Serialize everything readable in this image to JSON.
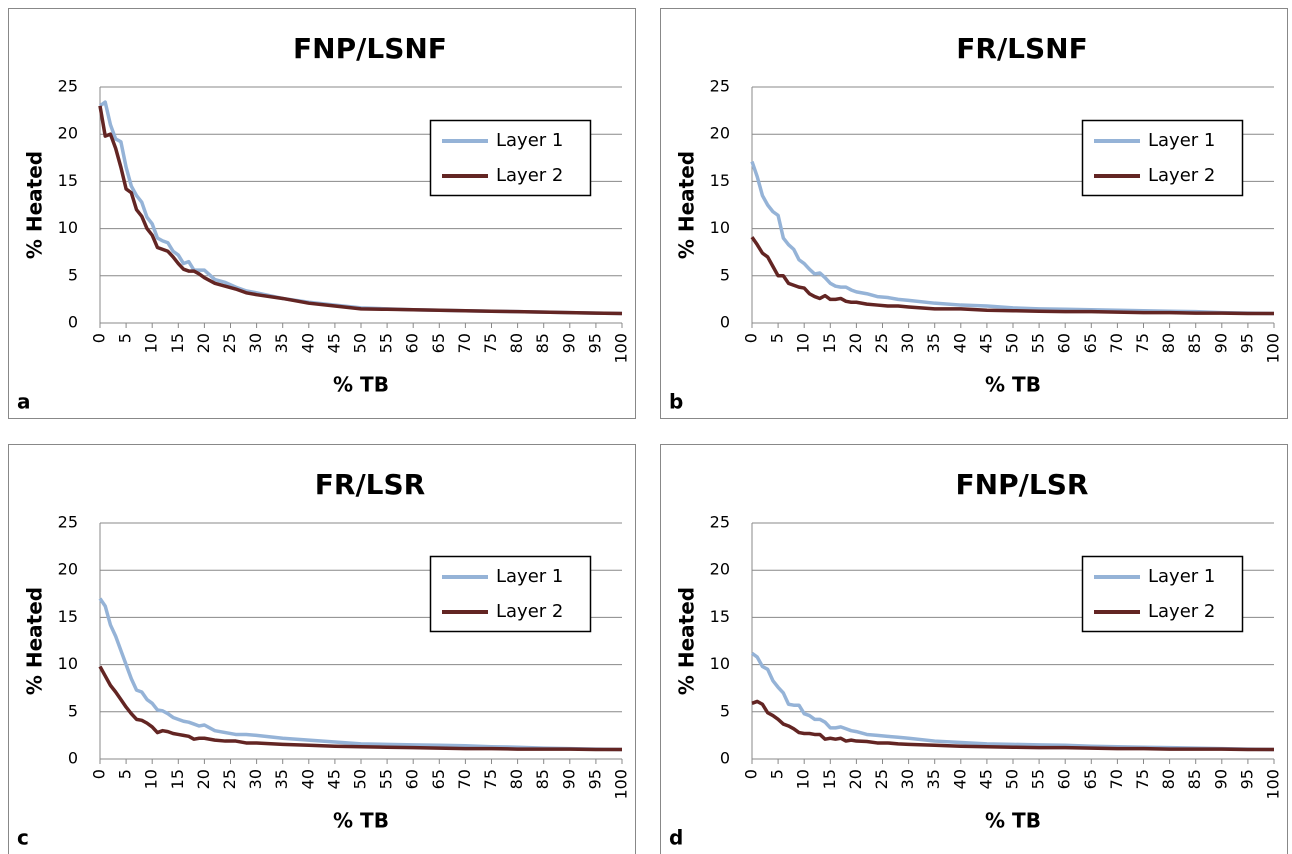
{
  "chart_data": [
    {
      "type": "line",
      "title": "FNP/LSNF",
      "panel_label": "a",
      "xlabel": "% TB",
      "ylabel": "% Heated",
      "x": [
        0,
        1,
        2,
        3,
        4,
        5,
        6,
        7,
        8,
        9,
        10,
        11,
        12,
        13,
        14,
        15,
        16,
        17,
        18,
        19,
        20,
        22,
        24,
        26,
        28,
        30,
        35,
        40,
        45,
        50,
        55,
        60,
        65,
        70,
        75,
        80,
        85,
        90,
        95,
        100
      ],
      "series": [
        {
          "name": "Layer 1",
          "color": "#95b3d7",
          "values": [
            23,
            23.4,
            21,
            19.5,
            19.2,
            16.5,
            14.5,
            13.5,
            12.8,
            11.2,
            10.5,
            9,
            8.7,
            8.5,
            7.6,
            7.2,
            6.3,
            6.5,
            5.6,
            5.6,
            5.6,
            4.6,
            4.3,
            3.8,
            3.4,
            3.2,
            2.6,
            2.2,
            1.9,
            1.6,
            1.5,
            1.4,
            1.35,
            1.3,
            1.25,
            1.2,
            1.15,
            1.1,
            1.05,
            1
          ]
        },
        {
          "name": "Layer 2",
          "color": "#632523",
          "values": [
            23,
            19.8,
            20,
            18.5,
            16.5,
            14.2,
            13.8,
            12,
            11.3,
            10,
            9.3,
            8,
            7.8,
            7.6,
            7,
            6.3,
            5.7,
            5.5,
            5.5,
            5.2,
            4.8,
            4.2,
            3.9,
            3.6,
            3.2,
            3,
            2.6,
            2.1,
            1.8,
            1.5,
            1.45,
            1.4,
            1.35,
            1.3,
            1.25,
            1.2,
            1.15,
            1.1,
            1.05,
            1
          ]
        }
      ],
      "xlim": [
        0,
        100
      ],
      "ylim": [
        0,
        25
      ],
      "xticks": [
        0,
        5,
        10,
        15,
        20,
        25,
        30,
        35,
        40,
        45,
        50,
        55,
        60,
        65,
        70,
        75,
        80,
        85,
        90,
        95,
        100
      ],
      "yticks": [
        0,
        5,
        10,
        15,
        20,
        25
      ],
      "grid": true,
      "legend": "right"
    },
    {
      "type": "line",
      "title": "FR/LSNF",
      "panel_label": "b",
      "xlabel": "% TB",
      "ylabel": "% Heated",
      "x": [
        0,
        1,
        2,
        3,
        4,
        5,
        6,
        7,
        8,
        9,
        10,
        11,
        12,
        13,
        14,
        15,
        16,
        17,
        18,
        19,
        20,
        22,
        24,
        26,
        28,
        30,
        35,
        40,
        45,
        50,
        55,
        60,
        65,
        70,
        75,
        80,
        85,
        90,
        95,
        100
      ],
      "series": [
        {
          "name": "Layer 1",
          "color": "#95b3d7",
          "values": [
            17.1,
            15.5,
            13.5,
            12.5,
            11.8,
            11.4,
            9,
            8.3,
            7.8,
            6.7,
            6.3,
            5.7,
            5.2,
            5.3,
            4.8,
            4.2,
            3.9,
            3.8,
            3.8,
            3.5,
            3.3,
            3.1,
            2.8,
            2.7,
            2.5,
            2.4,
            2.1,
            1.9,
            1.8,
            1.6,
            1.5,
            1.45,
            1.4,
            1.35,
            1.3,
            1.25,
            1.2,
            1.1,
            1.05,
            1
          ]
        },
        {
          "name": "Layer 2",
          "color": "#632523",
          "values": [
            9.1,
            8.3,
            7.4,
            7,
            6,
            5,
            5,
            4.2,
            4,
            3.8,
            3.7,
            3.1,
            2.8,
            2.6,
            2.9,
            2.5,
            2.5,
            2.6,
            2.3,
            2.2,
            2.2,
            2,
            1.9,
            1.8,
            1.8,
            1.7,
            1.5,
            1.5,
            1.35,
            1.3,
            1.25,
            1.2,
            1.2,
            1.15,
            1.1,
            1.1,
            1.05,
            1.05,
            1,
            1
          ]
        }
      ],
      "xlim": [
        0,
        100
      ],
      "ylim": [
        0,
        25
      ],
      "xticks": [
        0,
        5,
        10,
        15,
        20,
        25,
        30,
        35,
        40,
        45,
        50,
        55,
        60,
        65,
        70,
        75,
        80,
        85,
        90,
        95,
        100
      ],
      "yticks": [
        0,
        5,
        10,
        15,
        20,
        25
      ],
      "grid": true,
      "legend": "right"
    },
    {
      "type": "line",
      "title": "FR/LSR",
      "panel_label": "c",
      "xlabel": "% TB",
      "ylabel": "% Heated",
      "x": [
        0,
        1,
        2,
        3,
        4,
        5,
        6,
        7,
        8,
        9,
        10,
        11,
        12,
        13,
        14,
        15,
        16,
        17,
        18,
        19,
        20,
        22,
        24,
        26,
        28,
        30,
        35,
        40,
        45,
        50,
        55,
        60,
        65,
        70,
        75,
        80,
        85,
        90,
        95,
        100
      ],
      "series": [
        {
          "name": "Layer 1",
          "color": "#95b3d7",
          "values": [
            17,
            16.2,
            14.2,
            13,
            11.5,
            10,
            8.5,
            7.3,
            7.1,
            6.3,
            5.9,
            5.2,
            5.1,
            4.8,
            4.4,
            4.2,
            4,
            3.9,
            3.7,
            3.5,
            3.6,
            3,
            2.8,
            2.6,
            2.6,
            2.5,
            2.2,
            2,
            1.8,
            1.6,
            1.55,
            1.5,
            1.45,
            1.4,
            1.3,
            1.25,
            1.15,
            1.1,
            1.05,
            1
          ]
        },
        {
          "name": "Layer 2",
          "color": "#632523",
          "values": [
            9.8,
            8.8,
            7.8,
            7.1,
            6.3,
            5.5,
            4.8,
            4.2,
            4.1,
            3.8,
            3.4,
            2.8,
            3,
            2.9,
            2.7,
            2.6,
            2.5,
            2.4,
            2.1,
            2.2,
            2.2,
            2,
            1.9,
            1.9,
            1.7,
            1.7,
            1.55,
            1.45,
            1.35,
            1.3,
            1.25,
            1.2,
            1.15,
            1.1,
            1.1,
            1.05,
            1.05,
            1.05,
            1,
            1
          ]
        }
      ],
      "xlim": [
        0,
        100
      ],
      "ylim": [
        0,
        25
      ],
      "xticks": [
        0,
        5,
        10,
        15,
        20,
        25,
        30,
        35,
        40,
        45,
        50,
        55,
        60,
        65,
        70,
        75,
        80,
        85,
        90,
        95,
        100
      ],
      "yticks": [
        0,
        5,
        10,
        15,
        20,
        25
      ],
      "grid": true,
      "legend": "right"
    },
    {
      "type": "line",
      "title": "FNP/LSR",
      "panel_label": "d",
      "xlabel": "% TB",
      "ylabel": "% Heated",
      "x": [
        0,
        1,
        2,
        3,
        4,
        5,
        6,
        7,
        8,
        9,
        10,
        11,
        12,
        13,
        14,
        15,
        16,
        17,
        18,
        19,
        20,
        22,
        24,
        26,
        28,
        30,
        35,
        40,
        45,
        50,
        55,
        60,
        65,
        70,
        75,
        80,
        85,
        90,
        95,
        100
      ],
      "series": [
        {
          "name": "Layer 1",
          "color": "#95b3d7",
          "values": [
            11.2,
            10.8,
            9.8,
            9.5,
            8.3,
            7.6,
            7,
            5.8,
            5.7,
            5.7,
            4.8,
            4.6,
            4.2,
            4.2,
            3.9,
            3.3,
            3.3,
            3.4,
            3.2,
            3,
            2.9,
            2.6,
            2.5,
            2.4,
            2.3,
            2.2,
            1.9,
            1.75,
            1.6,
            1.55,
            1.5,
            1.45,
            1.35,
            1.3,
            1.25,
            1.2,
            1.15,
            1.1,
            1.05,
            1
          ]
        },
        {
          "name": "Layer 2",
          "color": "#632523",
          "values": [
            5.9,
            6.1,
            5.8,
            4.9,
            4.6,
            4.2,
            3.7,
            3.5,
            3.2,
            2.8,
            2.7,
            2.7,
            2.6,
            2.6,
            2.1,
            2.2,
            2.1,
            2.2,
            1.9,
            2,
            1.9,
            1.85,
            1.7,
            1.7,
            1.6,
            1.55,
            1.45,
            1.35,
            1.3,
            1.25,
            1.2,
            1.2,
            1.15,
            1.1,
            1.1,
            1.05,
            1.05,
            1.05,
            1,
            1
          ]
        }
      ],
      "xlim": [
        0,
        100
      ],
      "ylim": [
        0,
        25
      ],
      "xticks": [
        0,
        5,
        10,
        15,
        20,
        25,
        30,
        35,
        40,
        45,
        50,
        55,
        60,
        65,
        70,
        75,
        80,
        85,
        90,
        95,
        100
      ],
      "yticks": [
        0,
        5,
        10,
        15,
        20,
        25
      ],
      "grid": true,
      "legend": "right"
    }
  ]
}
